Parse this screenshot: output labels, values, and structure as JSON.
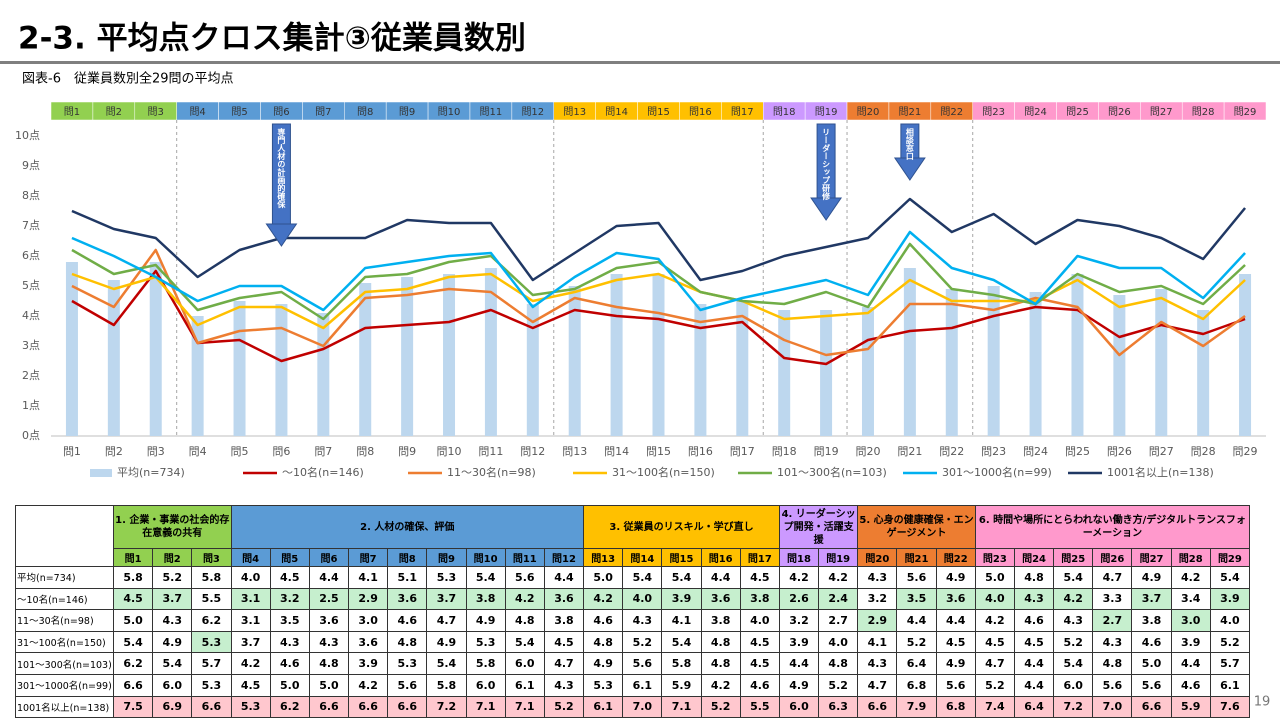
{
  "title": "2-3. 平均点クロス集計③従業員数別",
  "subtitle": "図表-6　従業員数別全29問の平均点",
  "page_number": "19",
  "groups": [
    {
      "label": "1. 企業・事業の社会的存在意義の共有",
      "color": "#92d050"
    },
    {
      "label": "2. 人材の確保、評価",
      "color": "#5b9bd5"
    },
    {
      "label": "3. 従業員のリスキル・学び直し",
      "color": "#ffc000"
    },
    {
      "label": "4. リーダーシップ開発・活躍支援",
      "color": "#cc99ff"
    },
    {
      "label": "5. 心身の健康確保・エンゲージメント",
      "color": "#ed7d31"
    },
    {
      "label": "6. 時間や場所にとらわれない働き方/デジタルトランスフォーメーション",
      "color": "#ff99cc"
    }
  ],
  "annotations": [
    "専門人材の計画的確保",
    "リーダーシップ研修",
    "相談窓口"
  ],
  "table": {
    "highlight_min": "#c6efce",
    "highlight_max": "#ffc7ce"
  },
  "chart_data": {
    "type": "combo",
    "categories": [
      "問1",
      "問2",
      "問3",
      "問4",
      "問5",
      "問6",
      "問7",
      "問8",
      "問9",
      "問10",
      "問11",
      "問12",
      "問13",
      "問14",
      "問15",
      "問16",
      "問17",
      "問18",
      "問19",
      "問20",
      "問21",
      "問22",
      "問23",
      "問24",
      "問25",
      "問26",
      "問27",
      "問28",
      "問29"
    ],
    "category_colors": [
      "#92d050",
      "#92d050",
      "#92d050",
      "#5b9bd5",
      "#5b9bd5",
      "#5b9bd5",
      "#5b9bd5",
      "#5b9bd5",
      "#5b9bd5",
      "#5b9bd5",
      "#5b9bd5",
      "#5b9bd5",
      "#ffc000",
      "#ffc000",
      "#ffc000",
      "#ffc000",
      "#ffc000",
      "#cc99ff",
      "#cc99ff",
      "#ed7d31",
      "#ed7d31",
      "#ed7d31",
      "#ff99cc",
      "#ff99cc",
      "#ff99cc",
      "#ff99cc",
      "#ff99cc",
      "#ff99cc",
      "#ff99cc"
    ],
    "ylim": [
      0,
      10
    ],
    "yticks": [
      {
        "value": 0,
        "label": "0点"
      },
      {
        "value": 1,
        "label": "1点"
      },
      {
        "value": 2,
        "label": "2点"
      },
      {
        "value": 3,
        "label": "3点"
      },
      {
        "value": 4,
        "label": "4点"
      },
      {
        "value": 5,
        "label": "5点"
      },
      {
        "value": 6,
        "label": "6点"
      },
      {
        "value": 7,
        "label": "7点"
      },
      {
        "value": 8,
        "label": "8点"
      },
      {
        "value": 9,
        "label": "9点"
      },
      {
        "value": 10,
        "label": "10点"
      }
    ],
    "grid": false,
    "legend": "bottom",
    "series": [
      {
        "name": "平均(n=734)",
        "type": "bar",
        "color": "#bdd7ee",
        "values": [
          5.8,
          5.2,
          5.8,
          4.0,
          4.5,
          4.4,
          4.1,
          5.1,
          5.3,
          5.4,
          5.6,
          4.4,
          5.0,
          5.4,
          5.4,
          4.4,
          4.5,
          4.2,
          4.2,
          4.3,
          5.6,
          4.9,
          5.0,
          4.8,
          5.4,
          4.7,
          4.9,
          4.2,
          5.4
        ],
        "value_labels": [
          "5.8",
          "5.2",
          "5.8",
          "4.0",
          "4.5",
          "4.4",
          "4.1",
          "5.1",
          "5.3",
          "5.4",
          "5.6",
          "4.4",
          "5.0",
          "5.4",
          "5.4",
          "4.4",
          "4.5",
          "4.2",
          "4.2",
          "4.3",
          "5.6",
          "4.9",
          "5.0",
          "4.8",
          "5.4",
          "4.7",
          "4.9",
          "4.2",
          "5.4"
        ]
      },
      {
        "name": "～10名(n=146)",
        "type": "line",
        "color": "#c00000",
        "values": [
          4.5,
          3.7,
          5.5,
          3.1,
          3.2,
          2.5,
          2.9,
          3.6,
          3.7,
          3.8,
          4.2,
          3.6,
          4.2,
          4.0,
          3.9,
          3.6,
          3.8,
          2.6,
          2.4,
          3.2,
          3.5,
          3.6,
          4.0,
          4.3,
          4.2,
          3.3,
          3.7,
          3.4,
          3.9
        ],
        "value_labels": [
          "4.5",
          "3.7",
          "5.5",
          "3.1",
          "3.2",
          "2.5",
          "2.9",
          "3.6",
          "3.7",
          "3.8",
          "4.2",
          "3.6",
          "4.2",
          "4.0",
          "3.9",
          "3.6",
          "3.8",
          "2.6",
          "2.4",
          "3.2",
          "3.5",
          "3.6",
          "4.0",
          "4.3",
          "4.2",
          "3.3",
          "3.7",
          "3.4",
          "3.9"
        ]
      },
      {
        "name": "11～30名(n=98)",
        "type": "line",
        "color": "#ed7d31",
        "values": [
          5.0,
          4.3,
          6.2,
          3.1,
          3.5,
          3.6,
          3.0,
          4.6,
          4.7,
          4.9,
          4.8,
          3.8,
          4.6,
          4.3,
          4.1,
          3.8,
          4.0,
          3.2,
          2.7,
          2.9,
          4.4,
          4.4,
          4.2,
          4.6,
          4.3,
          2.7,
          3.8,
          3.0,
          4.0
        ],
        "value_labels": [
          "5.0",
          "4.3",
          "6.2",
          "3.1",
          "3.5",
          "3.6",
          "3.0",
          "4.6",
          "4.7",
          "4.9",
          "4.8",
          "3.8",
          "4.6",
          "4.3",
          "4.1",
          "3.8",
          "4.0",
          "3.2",
          "2.7",
          "2.9",
          "4.4",
          "4.4",
          "4.2",
          "4.6",
          "4.3",
          "2.7",
          "3.8",
          "3.0",
          "4.0"
        ]
      },
      {
        "name": "31～100名(n=150)",
        "type": "line",
        "color": "#ffc000",
        "values": [
          5.4,
          4.9,
          5.3,
          3.7,
          4.3,
          4.3,
          3.6,
          4.8,
          4.9,
          5.3,
          5.4,
          4.5,
          4.8,
          5.2,
          5.4,
          4.8,
          4.5,
          3.9,
          4.0,
          4.1,
          5.2,
          4.5,
          4.5,
          4.5,
          5.2,
          4.3,
          4.6,
          3.9,
          5.2
        ],
        "value_labels": [
          "5.4",
          "4.9",
          "5.3",
          "3.7",
          "4.3",
          "4.3",
          "3.6",
          "4.8",
          "4.9",
          "5.3",
          "5.4",
          "4.5",
          "4.8",
          "5.2",
          "5.4",
          "4.8",
          "4.5",
          "3.9",
          "4.0",
          "4.1",
          "5.2",
          "4.5",
          "4.5",
          "4.5",
          "5.2",
          "4.3",
          "4.6",
          "3.9",
          "5.2"
        ]
      },
      {
        "name": "101～300名(n=103)",
        "type": "line",
        "color": "#70ad47",
        "values": [
          6.2,
          5.4,
          5.7,
          4.2,
          4.6,
          4.8,
          3.9,
          5.3,
          5.4,
          5.8,
          6.0,
          4.7,
          4.9,
          5.6,
          5.8,
          4.8,
          4.5,
          4.4,
          4.8,
          4.3,
          6.4,
          4.9,
          4.7,
          4.4,
          5.4,
          4.8,
          5.0,
          4.4,
          5.7
        ],
        "value_labels": [
          "6.2",
          "5.4",
          "5.7",
          "4.2",
          "4.6",
          "4.8",
          "3.9",
          "5.3",
          "5.4",
          "5.8",
          "6.0",
          "4.7",
          "4.9",
          "5.6",
          "5.8",
          "4.8",
          "4.5",
          "4.4",
          "4.8",
          "4.3",
          "6.4",
          "4.9",
          "4.7",
          "4.4",
          "5.4",
          "4.8",
          "5.0",
          "4.4",
          "5.7"
        ]
      },
      {
        "name": "301～1000名(n=99)",
        "type": "line",
        "color": "#00b0f0",
        "values": [
          6.6,
          6.0,
          5.3,
          4.5,
          5.0,
          5.0,
          4.2,
          5.6,
          5.8,
          6.0,
          6.1,
          4.3,
          5.3,
          6.1,
          5.9,
          4.2,
          4.6,
          4.9,
          5.2,
          4.7,
          6.8,
          5.6,
          5.2,
          4.4,
          6.0,
          5.6,
          5.6,
          4.6,
          6.1
        ],
        "value_labels": [
          "6.6",
          "6.0",
          "5.3",
          "4.5",
          "5.0",
          "5.0",
          "4.2",
          "5.6",
          "5.8",
          "6.0",
          "6.1",
          "4.3",
          "5.3",
          "6.1",
          "5.9",
          "4.2",
          "4.6",
          "4.9",
          "5.2",
          "4.7",
          "6.8",
          "5.6",
          "5.2",
          "4.4",
          "6.0",
          "5.6",
          "5.6",
          "4.6",
          "6.1"
        ]
      },
      {
        "name": "1001名以上(n=138)",
        "type": "line",
        "color": "#203864",
        "values": [
          7.5,
          6.9,
          6.6,
          5.3,
          6.2,
          6.6,
          6.6,
          6.6,
          7.2,
          7.1,
          7.1,
          5.2,
          6.1,
          7.0,
          7.1,
          5.2,
          5.5,
          6.0,
          6.3,
          6.6,
          7.9,
          6.8,
          7.4,
          6.4,
          7.2,
          7.0,
          6.6,
          5.9,
          7.6
        ],
        "value_labels": [
          "7.5",
          "6.9",
          "6.6",
          "5.3",
          "6.2",
          "6.6",
          "6.6",
          "6.6",
          "7.2",
          "7.1",
          "7.1",
          "5.2",
          "6.1",
          "7.0",
          "7.1",
          "5.2",
          "5.5",
          "6.0",
          "6.3",
          "6.6",
          "7.9",
          "6.8",
          "7.4",
          "6.4",
          "7.2",
          "7.0",
          "6.6",
          "5.9",
          "7.6"
        ]
      }
    ]
  }
}
